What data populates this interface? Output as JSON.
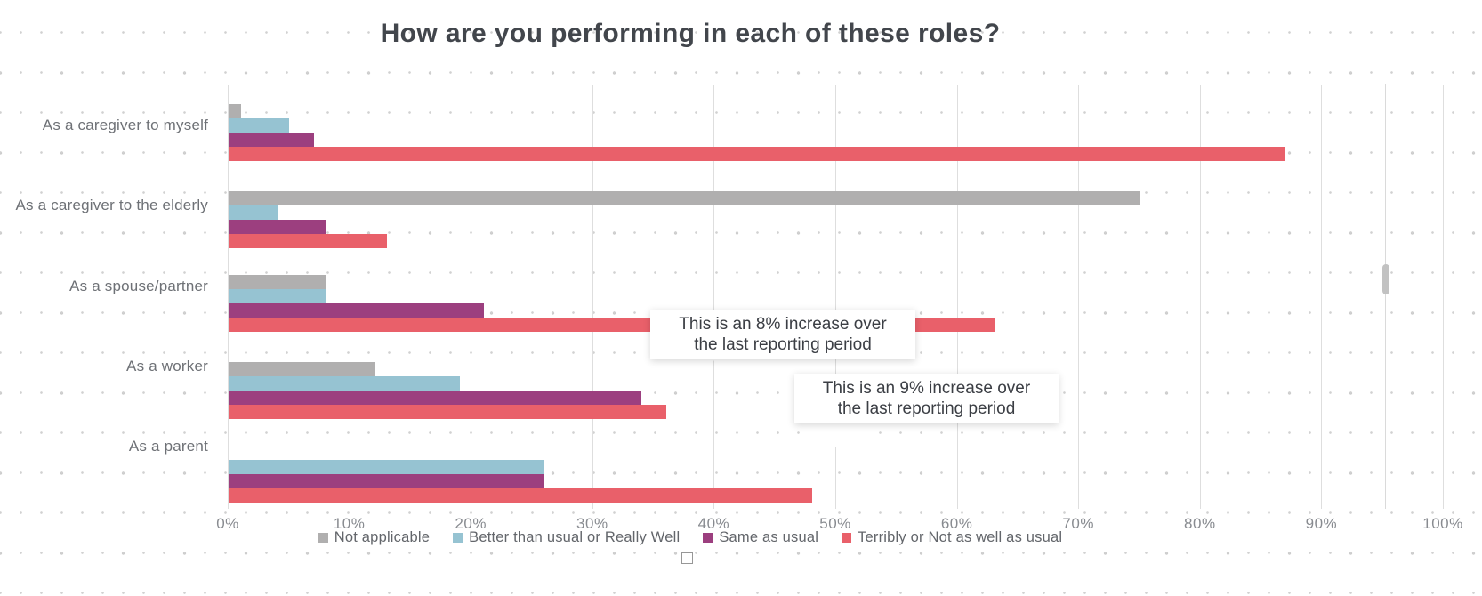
{
  "title": "How are you performing in each of these roles?",
  "chart_data": {
    "type": "bar",
    "orientation": "horizontal",
    "title": "How are you performing in each of these roles?",
    "categories": [
      "As a caregiver to myself",
      "As a caregiver to the elderly",
      "As a spouse/partner",
      "As a worker",
      "As a parent"
    ],
    "series": [
      {
        "name": "Not applicable",
        "color": "#b0afaf",
        "values": [
          1,
          75,
          8,
          12,
          null
        ]
      },
      {
        "name": "Better than usual or Really Well",
        "color": "#96c3d2",
        "values": [
          5,
          4,
          8,
          19,
          26
        ]
      },
      {
        "name": "Same as usual",
        "color": "#9c3f7f",
        "values": [
          7,
          8,
          21,
          34,
          26
        ]
      },
      {
        "name": "Terribly or Not as well as usual",
        "color": "#e9606a",
        "values": [
          87,
          13,
          63,
          36,
          48
        ]
      }
    ],
    "x_ticks": [
      "0%",
      "10%",
      "20%",
      "30%",
      "40%",
      "50%",
      "60%",
      "70%",
      "80%",
      "90%",
      "100%"
    ],
    "xlim": [
      0,
      100
    ],
    "legend_position": "bottom",
    "grid": "vertical-lines"
  },
  "annotations": [
    {
      "line1": "This is an 8% increase over",
      "line2": "the last reporting period"
    },
    {
      "line1": "This is an 9% increase over",
      "line2": "the last reporting period"
    }
  ]
}
